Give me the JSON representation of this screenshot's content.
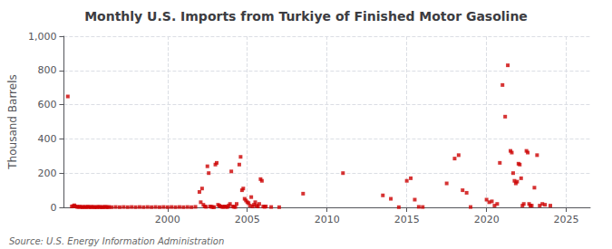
{
  "chart_data": {
    "type": "scatter",
    "title": "Monthly U.S. Imports from Turkiye of Finished Motor Gasoline",
    "ylabel": "Thousand Barrels",
    "annotations": [
      "Source: U.S. Energy Information Administration"
    ],
    "color": "#cc0000",
    "marker": "square",
    "grid": true,
    "xlim": [
      1993.5,
      2026.5
    ],
    "xticks": [
      2000,
      2005,
      2010,
      2015,
      2020,
      2025
    ],
    "ylim": [
      0,
      1000
    ],
    "yticks": [
      0,
      200,
      400,
      600,
      800,
      {
        "value": 1000,
        "label": "1,000"
      }
    ],
    "x": [
      1993.75,
      1994.0,
      1994.083,
      1994.167,
      1994.25,
      1994.333,
      1994.417,
      1994.5,
      1994.583,
      1994.667,
      1994.75,
      1994.833,
      1994.917,
      1995.0,
      1995.083,
      1995.167,
      1995.25,
      1995.333,
      1995.417,
      1995.5,
      1995.583,
      1995.667,
      1995.75,
      1995.833,
      1995.917,
      1996.0,
      1996.083,
      1996.167,
      1996.25,
      1996.333,
      1996.5,
      1996.75,
      1997.0,
      1997.25,
      1997.5,
      1997.75,
      1998.0,
      1998.25,
      1998.5,
      1998.75,
      1999.0,
      1999.25,
      1999.5,
      1999.75,
      2000.0,
      2000.25,
      2000.5,
      2000.75,
      2001.0,
      2001.25,
      2001.5,
      2001.75,
      2002.0,
      2002.083,
      2002.167,
      2002.25,
      2002.333,
      2002.417,
      2002.5,
      2002.583,
      2002.667,
      2002.75,
      2002.833,
      2002.917,
      2003.0,
      2003.083,
      2003.167,
      2003.25,
      2003.333,
      2003.417,
      2003.5,
      2003.583,
      2003.667,
      2003.75,
      2003.833,
      2003.917,
      2004.0,
      2004.083,
      2004.167,
      2004.25,
      2004.333,
      2004.5,
      2004.583,
      2004.667,
      2004.75,
      2004.833,
      2004.917,
      2005.0,
      2005.083,
      2005.167,
      2005.25,
      2005.333,
      2005.417,
      2005.5,
      2005.583,
      2005.667,
      2005.75,
      2005.833,
      2005.917,
      2006.0,
      2006.083,
      2006.167,
      2006.5,
      2007.0,
      2008.5,
      2011.0,
      2013.5,
      2014.0,
      2014.5,
      2015.0,
      2015.25,
      2015.5,
      2015.75,
      2016.0,
      2017.5,
      2018.0,
      2018.25,
      2018.5,
      2018.75,
      2019.0,
      2020.0,
      2020.167,
      2020.333,
      2020.5,
      2020.667,
      2020.833,
      2021.0,
      2021.167,
      2021.333,
      2021.5,
      2021.583,
      2021.667,
      2021.75,
      2021.833,
      2021.917,
      2022.0,
      2022.083,
      2022.167,
      2022.25,
      2022.333,
      2022.5,
      2022.583,
      2022.667,
      2022.75,
      2022.833,
      2023.0,
      2023.167,
      2023.333,
      2023.5,
      2023.667,
      2024.0
    ],
    "values": [
      648,
      5,
      8,
      12,
      5,
      3,
      2,
      4,
      2,
      1,
      3,
      2,
      1,
      4,
      2,
      1,
      3,
      2,
      1,
      2,
      1,
      3,
      2,
      1,
      2,
      1,
      3,
      2,
      1,
      2,
      1,
      2,
      1,
      2,
      1,
      2,
      1,
      2,
      1,
      2,
      1,
      2,
      1,
      2,
      1,
      2,
      1,
      2,
      1,
      2,
      1,
      3,
      90,
      30,
      110,
      15,
      5,
      3,
      240,
      200,
      5,
      3,
      2,
      1,
      250,
      260,
      15,
      10,
      5,
      3,
      2,
      5,
      3,
      2,
      10,
      20,
      210,
      5,
      3,
      2,
      20,
      250,
      295,
      100,
      110,
      50,
      40,
      30,
      25,
      10,
      60,
      5,
      15,
      30,
      10,
      5,
      20,
      165,
      155,
      5,
      3,
      5,
      2,
      1,
      80,
      200,
      70,
      50,
      1,
      155,
      170,
      45,
      3,
      2,
      140,
      285,
      305,
      100,
      85,
      2,
      45,
      30,
      35,
      10,
      20,
      260,
      715,
      530,
      830,
      330,
      320,
      200,
      155,
      140,
      150,
      255,
      250,
      170,
      10,
      20,
      330,
      320,
      20,
      10,
      10,
      115,
      305,
      10,
      20,
      15,
      10
    ]
  }
}
